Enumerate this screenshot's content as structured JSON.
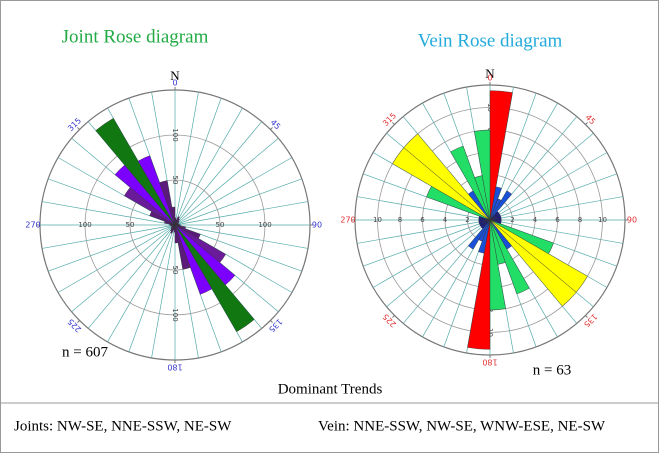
{
  "chart_data": [
    {
      "type": "rose",
      "title": "Joint Rose diagram",
      "title_color": "#22aa44",
      "north_label": "N",
      "annotation": "n = 607",
      "axial": true,
      "x": [
        0,
        10,
        20,
        30,
        40,
        50,
        60,
        70,
        80,
        90,
        100,
        110,
        120,
        130,
        140,
        150,
        160,
        170
      ],
      "values": [
        8,
        6,
        10,
        8,
        6,
        5,
        4,
        4,
        5,
        6,
        12,
        30,
        65,
        87,
        137,
        82,
        50,
        20
      ],
      "colors": [
        "#5c1a7a",
        "#5c1a7a",
        "#5c1a7a",
        "#5c1a7a",
        "#5c1a7a",
        "#5c1a7a",
        "#5c1a7a",
        "#5c1a7a",
        "#5c1a7a",
        "#5c1a7a",
        "#5c1a7a",
        "#5c1a7a",
        "#6a1b9a",
        "#7b00ff",
        "#117711",
        "#7b00ff",
        "#5c1a7a",
        "#5c1a7a"
      ],
      "rlim": [
        0,
        150
      ],
      "rticks": [
        50,
        100
      ],
      "xticks": [
        0,
        45,
        90,
        135,
        180,
        225,
        270,
        315
      ],
      "tick_color": "#3333cc",
      "grid_color": "#55aaaa"
    },
    {
      "type": "rose",
      "title": "Vein Rose diagram",
      "title_color": "#22aadd",
      "north_label": "N",
      "annotation": "n = 63",
      "axial": true,
      "x": [
        0,
        10,
        20,
        30,
        40,
        50,
        60,
        70,
        80,
        90,
        100,
        110,
        120,
        130,
        140,
        150,
        160,
        170
      ],
      "values": [
        11.5,
        3,
        2,
        3,
        1,
        1,
        1,
        1,
        1,
        1,
        1,
        6,
        10,
        10,
        3,
        7,
        4,
        8
      ],
      "colors": [
        "#ff0000",
        "#1a4fd8",
        "#1a4fd8",
        "#1a4fd8",
        "#1a1a8a",
        "#1a1a8a",
        "#1a1a8a",
        "#1a1a8a",
        "#1a1a8a",
        "#1a1a8a",
        "#1a1a8a",
        "#22dd66",
        "#ffff00",
        "#ffff00",
        "#1a4fd8",
        "#22dd66",
        "#22dd66",
        "#22dd66"
      ],
      "rlim": [
        0,
        12
      ],
      "rticks": [
        2,
        4,
        6,
        8,
        10
      ],
      "xticks": [
        0,
        45,
        90,
        135,
        180,
        225,
        270,
        315
      ],
      "tick_color": "#e03030",
      "grid_color": "#55aaaa"
    }
  ],
  "caption": {
    "heading": "Dominant Trends",
    "joints": "Joints: NW-SE, NNE-SSW, NE-SW",
    "vein": "Vein: NNE-SSW, NW-SE, WNW-ESE, NE-SW"
  }
}
